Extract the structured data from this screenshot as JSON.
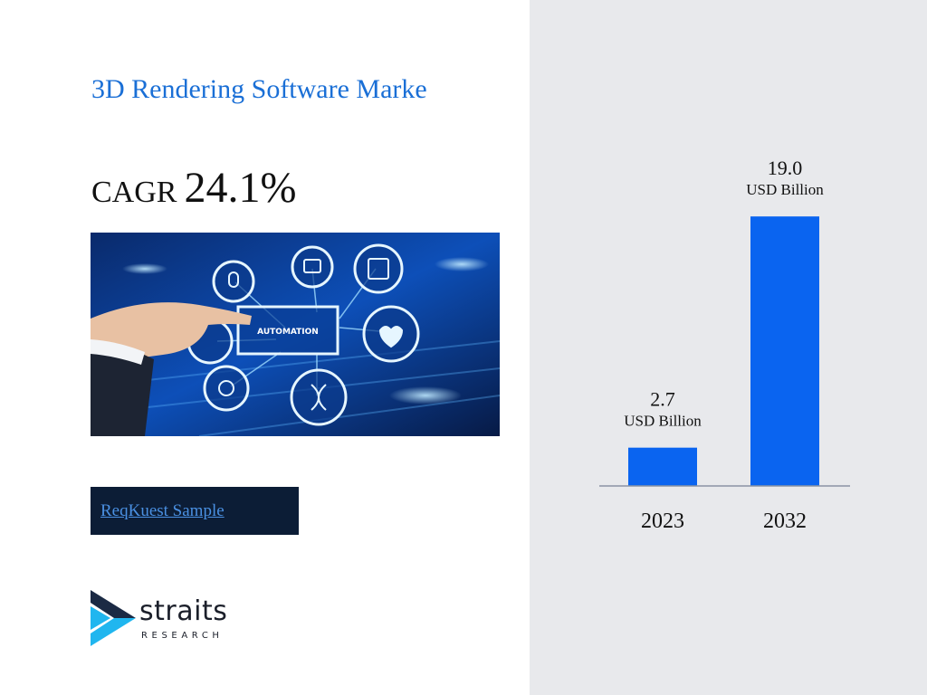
{
  "header": {
    "title": "3D Rendering Software Marke"
  },
  "cagr": {
    "label": "CAGR",
    "value": "24.1%"
  },
  "hero_image": {
    "center_label": "AUTOMATION"
  },
  "cta": {
    "label": "ReqKuest Sample"
  },
  "logo": {
    "word": "straits",
    "subword": "RESEARCH"
  },
  "colors": {
    "title": "#1a6fd6",
    "bar": "#0a64f0",
    "panel": "#e8e9ec",
    "cta_bg": "#0c1d36",
    "cta_link": "#4a90e2"
  },
  "chart_data": {
    "type": "bar",
    "categories": [
      "2023",
      "2032"
    ],
    "values": [
      2.7,
      19.0
    ],
    "value_labels": [
      "2.7",
      "19.0"
    ],
    "unit_label": "USD Billion",
    "ylim": [
      0,
      21.5
    ],
    "grid": false,
    "legend": "none"
  }
}
